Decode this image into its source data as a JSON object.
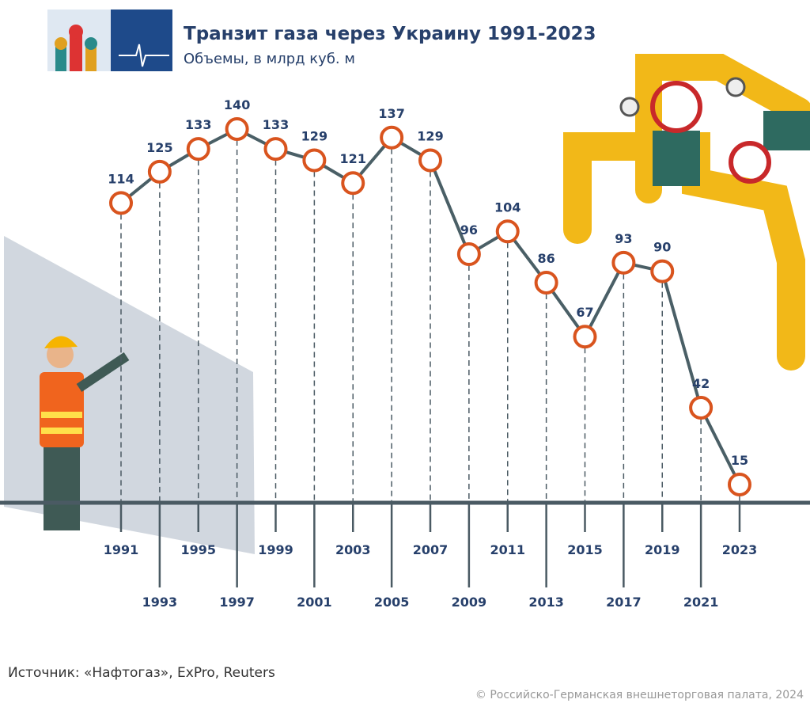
{
  "chart_data": {
    "type": "line",
    "title": "Транзит газа через Украину 1991-2023",
    "subtitle": "Объемы, в млрд куб. м",
    "x": [
      1991,
      1993,
      1995,
      1997,
      1999,
      2001,
      2003,
      2005,
      2007,
      2009,
      2011,
      2013,
      2015,
      2017,
      2019,
      2021,
      2023
    ],
    "values": [
      114,
      125,
      133,
      140,
      133,
      129,
      121,
      137,
      129,
      96,
      104,
      86,
      67,
      93,
      90,
      42,
      15
    ],
    "color": "#4a5f66",
    "marker_color": "#d9541e",
    "source": "Источник: «Нафтогаз», ExPro, Reuters",
    "credit": "© Российско-Германская внешнеторговая палата, 2024"
  }
}
